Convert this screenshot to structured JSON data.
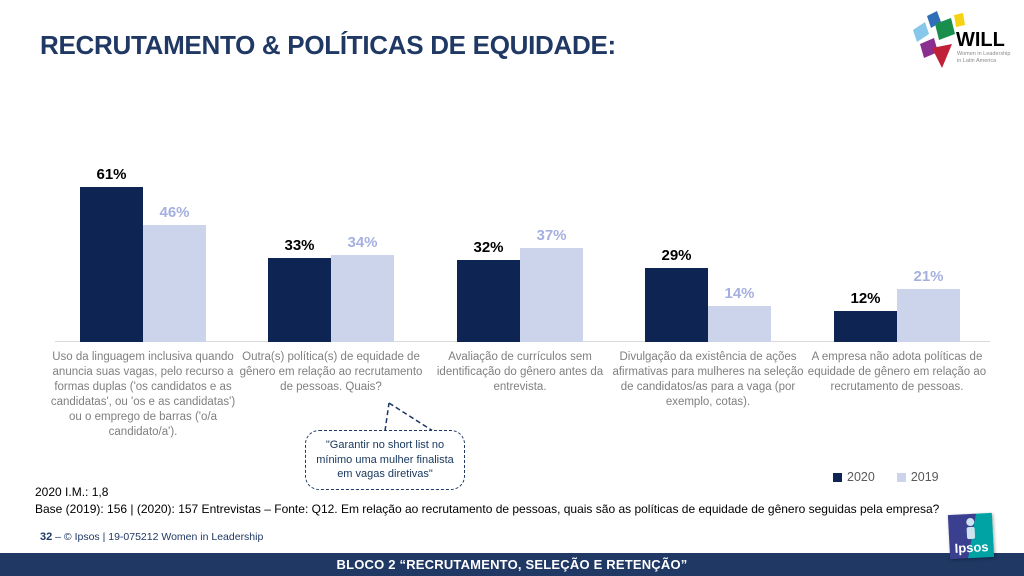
{
  "title": "RECRUTAMENTO & POLÍTICAS DE EQUIDADE:",
  "will_logo": {
    "name": "WILL",
    "tagline_line1": "Women in Leadership",
    "tagline_line2": "in Latin America"
  },
  "chart_data": {
    "type": "bar",
    "categories": [
      "Uso da linguagem inclusiva quando anuncia suas vagas, pelo recurso a formas duplas ('os candidatos e as candidatas', ou 'os e as candidatas') ou o emprego de barras ('o/a candidato/a').",
      "Outra(s) política(s) de equidade de gênero em relação ao recrutamento de pessoas. Quais?",
      "Avaliação de currículos sem identificação do gênero antes da entrevista.",
      "Divulgação da existência de ações afirmativas para mulheres na seleção de candidatos/as para a vaga (por exemplo, cotas).",
      "A empresa não adota políticas de equidade de gênero em relação ao recrutamento de pessoas."
    ],
    "series": [
      {
        "name": "2020",
        "values": [
          61,
          33,
          32,
          29,
          12
        ],
        "color": "#0e2452",
        "label_color": "#000000"
      },
      {
        "name": "2019",
        "values": [
          46,
          34,
          37,
          14,
          21
        ],
        "color": "#ccd4ec",
        "label_color": "#a5b0e0"
      }
    ],
    "value_suffix": "%",
    "ylim": [
      0,
      70
    ],
    "grid": false,
    "legend_position": "bottom-right"
  },
  "callout": {
    "text": "\"Garantir no short list no mínimo uma mulher finalista em vagas diretivas\""
  },
  "notes": {
    "im": "2020 I.M.: 1,8",
    "base": "Base (2019): 156 | (2020): 157 Entrevistas – Fonte: Q12. Em relação ao recrutamento de pessoas, quais são as políticas de equidade de gênero seguidas pela empresa?"
  },
  "footer": {
    "page": "32",
    "copyright": "–  © Ipsos | 19-075212 Women in Leadership",
    "banner": "BLOCO 2 “RECRUTAMENTO, SELEÇÃO E RETENÇÃO”",
    "ipsos_logo": "Ipsos"
  },
  "colors": {
    "accent_navy": "#1f3864",
    "bar_2020": "#0e2452",
    "bar_2019": "#ccd4ec",
    "value_label_2019": "#a5b0e0",
    "category_label": "#7f7f7f",
    "legend_text": "#595959",
    "axis_line": "#d9d9d9",
    "banner_bg": "#1f3864",
    "ipsos_indigo": "#3b3f8f",
    "ipsos_teal": "#00a3a3"
  }
}
